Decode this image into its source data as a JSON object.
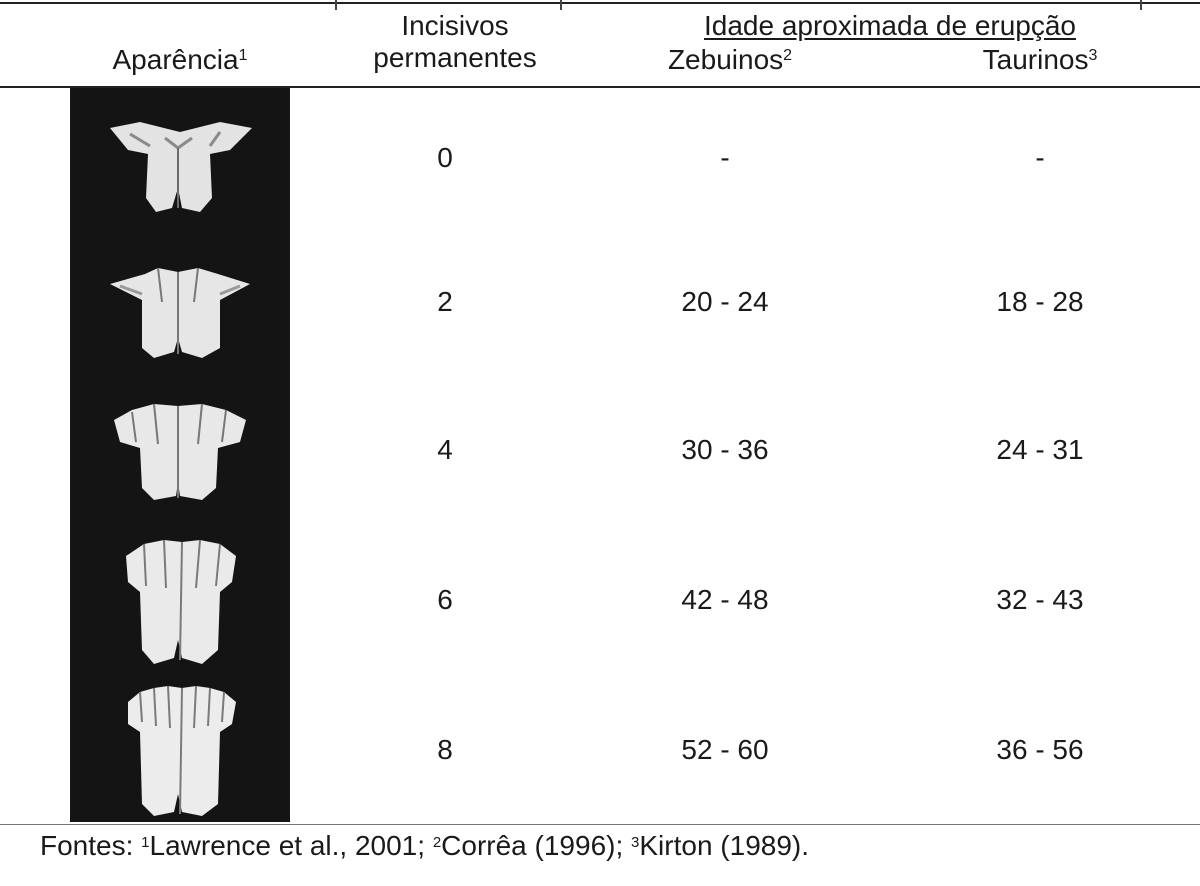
{
  "header": {
    "appearance": "Aparência",
    "appearance_sup": "1",
    "incisors_line1": "Incisivos",
    "incisors_line2": "permanentes",
    "age_title": "Idade aproximada de erupção",
    "zebu": "Zebuinos",
    "zebu_sup": "2",
    "taurine": "Taurinos",
    "taurine_sup": "3"
  },
  "rows": [
    {
      "incisors": "0",
      "zebu": "-",
      "taurine": "-"
    },
    {
      "incisors": "2",
      "zebu": "20 - 24",
      "taurine": "18 - 28"
    },
    {
      "incisors": "4",
      "zebu": "30 - 36",
      "taurine": "24 - 31"
    },
    {
      "incisors": "6",
      "zebu": "42 - 48",
      "taurine": "32 - 43"
    },
    {
      "incisors": "8",
      "zebu": "52 - 60",
      "taurine": "36 - 56"
    }
  ],
  "footnote": {
    "prefix": "Fontes: ",
    "s1": "1",
    "t1": "Lawrence et al., 2001;  ",
    "s2": "2",
    "t2": "Corrêa (1996);  ",
    "s3": "3",
    "t3": "Kirton (1989)."
  },
  "colors": {
    "photo_background": "#141414",
    "tooth": "#e6e6e6"
  }
}
